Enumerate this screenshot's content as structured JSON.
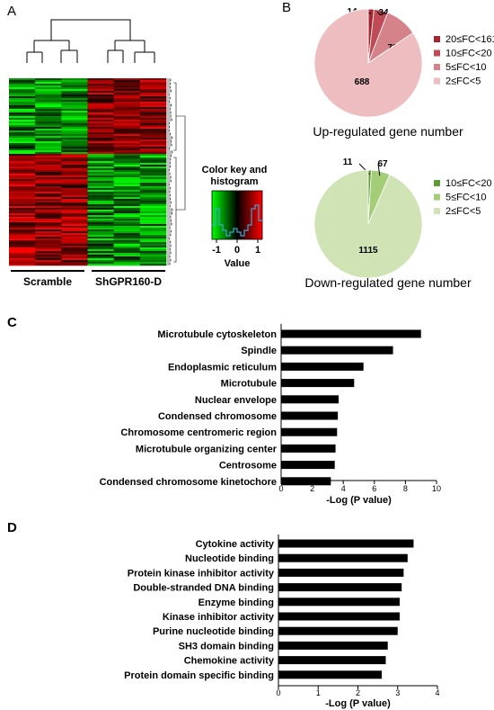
{
  "panel_letters": {
    "a": "A",
    "b": "B",
    "c": "C",
    "d": "D"
  },
  "heatmap": {
    "groups": [
      "Scramble",
      "ShGPR160-D"
    ],
    "color_key_title_line1": "Color key and",
    "color_key_title_line2": "histogram",
    "color_key_ticks": [
      "-1",
      "0",
      "1"
    ],
    "color_key_axis_label": "Value",
    "colors": {
      "low": "#00ff00",
      "mid": "#000000",
      "high": "#ff0000",
      "hist": "#33aadd"
    }
  },
  "chart_data": [
    {
      "type": "pie",
      "title": "Up-regulated gene number",
      "slices": [
        {
          "label": "20≤FC<161",
          "value": 14,
          "color": "#a52530"
        },
        {
          "label": "10≤FC<20",
          "value": 34,
          "color": "#c04a55"
        },
        {
          "label": "5≤FC<10",
          "value": 79,
          "color": "#d6828a"
        },
        {
          "label": "2≤FC<5",
          "value": 688,
          "color": "#eebdc0"
        }
      ]
    },
    {
      "type": "pie",
      "title": "Down-regulated gene number",
      "slices": [
        {
          "label": "10≤FC<20",
          "value": 11,
          "color": "#5f9a33"
        },
        {
          "label": "5≤FC<10",
          "value": 67,
          "color": "#a4cd78"
        },
        {
          "label": "2≤FC<5",
          "value": 1115,
          "color": "#cfe3b5"
        }
      ]
    },
    {
      "type": "bar",
      "orientation": "horizontal",
      "categories": [
        "Microtubule cytoskeleton",
        "Spindle",
        "Endoplasmic reticulum",
        "Microtubule",
        "Nuclear envelope",
        "Condensed chromosome",
        "Chromosome centromeric region",
        "Microtubule organizing center",
        "Centrosome",
        "Condensed chromosome kinetochore"
      ],
      "values": [
        9.0,
        7.2,
        5.3,
        4.7,
        3.7,
        3.65,
        3.6,
        3.5,
        3.45,
        3.2
      ],
      "xlabel": "-Log (P value)",
      "xlim": [
        0,
        10
      ],
      "xticks": [
        0,
        2,
        4,
        6,
        8,
        10
      ]
    },
    {
      "type": "bar",
      "orientation": "horizontal",
      "categories": [
        "Cytokine activity",
        "Nucleotide binding",
        "Protein kinase inhibitor activity",
        "Double-stranded DNA binding",
        "Enzyme binding",
        "Kinase inhibitor activity",
        "Purine nucleotide binding",
        "SH3 domain binding",
        "Chemokine activity",
        "Protein domain specific binding"
      ],
      "values": [
        3.4,
        3.25,
        3.15,
        3.1,
        3.05,
        3.05,
        3.0,
        2.75,
        2.7,
        2.6
      ],
      "xlabel": "-Log (P value)",
      "xlim": [
        0,
        4
      ],
      "xticks": [
        0,
        1,
        2,
        3,
        4
      ]
    }
  ]
}
